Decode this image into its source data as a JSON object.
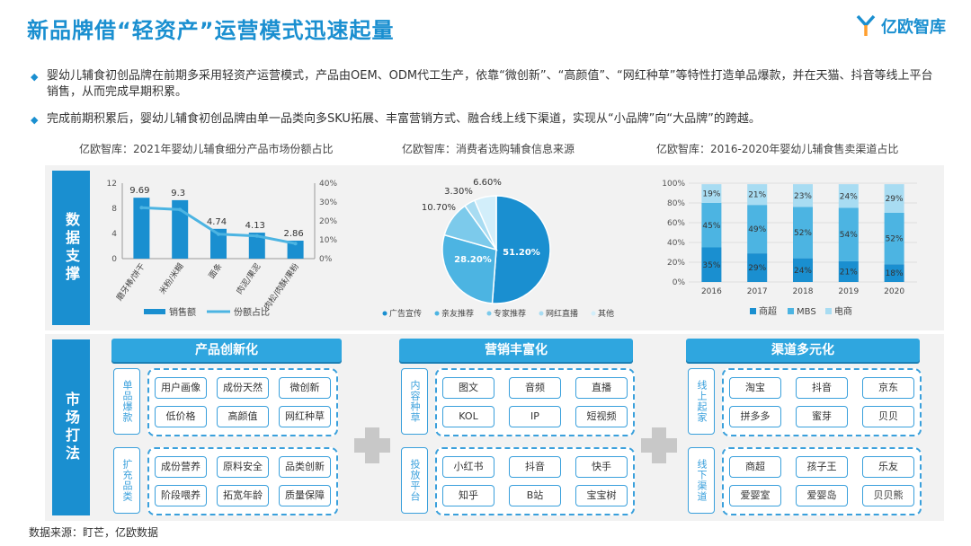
{
  "header": {
    "title": "新品牌借“轻资产”运营模式迅速起量",
    "logo_text": "亿欧智库"
  },
  "bullets": [
    "婴幼儿辅食初创品牌在前期多采用轻资产运营模式，产品由OEM、ODM代工生产，依靠“微创新”、“高颜值”、“网红种草”等特性打造单品爆款，并在天猫、抖音等线上平台销售，从而完成早期积累。",
    "完成前期积累后，婴幼儿辅食初创品牌由单一品类向多SKU拓展、丰富营销方式、融合线上线下渠道，实现从“小品牌”向“大品牌”的跨越。"
  ],
  "chart_titles": [
    "亿欧智库：2021年婴幼儿辅食细分产品市场份额占比",
    "亿欧智库：消费者选购辅食信息来源",
    "亿欧智库：2016-2020年婴幼儿辅食售卖渠道占比"
  ],
  "side_labels": {
    "data": "数据支撑",
    "market": "市场打法"
  },
  "chart_data": [
    {
      "type": "bar",
      "categories": [
        "磨牙棒/饼干",
        "米粉/米糊",
        "面条",
        "肉泥/果泥",
        "肉松/肉酥/果粉"
      ],
      "series": [
        {
          "name": "销售额",
          "type": "bar",
          "values": [
            9.69,
            9.3,
            4.74,
            4.13,
            2.86
          ]
        },
        {
          "name": "份额占比",
          "type": "line",
          "values": [
            27,
            26,
            13,
            12,
            8
          ]
        }
      ],
      "data_labels": [
        "9.69",
        "9.3",
        "4.74",
        "4.13",
        "2.86"
      ],
      "ylim": [
        0,
        12
      ],
      "yticks": [
        "0",
        "4",
        "8",
        "12"
      ],
      "y2lim": [
        0,
        40
      ],
      "y2ticks": [
        "0%",
        "10%",
        "20%",
        "30%",
        "40%"
      ]
    },
    {
      "type": "pie",
      "labels": [
        "广告宣传",
        "亲友推荐",
        "专家推荐",
        "网红直播",
        "其他"
      ],
      "values": [
        51.2,
        28.2,
        10.7,
        3.3,
        6.6
      ],
      "value_labels": [
        "51.20%",
        "28.20%",
        "10.70%",
        "3.30%",
        "6.60%"
      ],
      "colors": [
        "#1a8fd0",
        "#4cb4e2",
        "#7ccaeb",
        "#a8dcf2",
        "#d2eefa"
      ]
    },
    {
      "type": "bar",
      "stacked": true,
      "categories": [
        "2016",
        "2017",
        "2018",
        "2019",
        "2020"
      ],
      "series": [
        {
          "name": "商超",
          "values": [
            35,
            29,
            24,
            21,
            18
          ],
          "labels": [
            "35%",
            "29%",
            "24%",
            "21%",
            "18%"
          ],
          "color": "#1a8fd0"
        },
        {
          "name": "MBS",
          "values": [
            45,
            49,
            52,
            54,
            52
          ],
          "labels": [
            "45%",
            "49%",
            "52%",
            "54%",
            "52%"
          ],
          "color": "#4cb4e2"
        },
        {
          "name": "电商",
          "values": [
            19,
            21,
            23,
            24,
            29
          ],
          "labels": [
            "19%",
            "21%",
            "23%",
            "24%",
            "29%"
          ],
          "color": "#a8dcf2"
        }
      ],
      "ylim": [
        0,
        100
      ],
      "yticks": [
        "0%",
        "20%",
        "40%",
        "60%",
        "80%",
        "100%"
      ]
    }
  ],
  "market": {
    "sections": [
      {
        "title": "产品创新化",
        "groups": [
          {
            "tab": "单品爆款",
            "items": [
              "用户画像",
              "成份天然",
              "微创新",
              "低价格",
              "高颜值",
              "网红种草"
            ]
          },
          {
            "tab": "扩充品类",
            "items": [
              "成份营养",
              "原料安全",
              "品类创新",
              "阶段喂养",
              "拓宽年龄",
              "质量保障"
            ]
          }
        ]
      },
      {
        "title": "营销丰富化",
        "groups": [
          {
            "tab": "内容种草",
            "items": [
              "图文",
              "音频",
              "直播",
              "KOL",
              "IP",
              "短视频"
            ]
          },
          {
            "tab": "投放平台",
            "items": [
              "小红书",
              "抖音",
              "快手",
              "知乎",
              "B站",
              "宝宝树"
            ]
          }
        ]
      },
      {
        "title": "渠道多元化",
        "groups": [
          {
            "tab": "线上起家",
            "items": [
              "淘宝",
              "抖音",
              "京东",
              "拼多多",
              "蜜芽",
              "贝贝"
            ]
          },
          {
            "tab": "线下渠道",
            "items": [
              "商超",
              "孩子王",
              "乐友",
              "爱婴室",
              "爱婴岛",
              "贝贝熊"
            ]
          }
        ]
      }
    ]
  },
  "source": "数据来源：盯芒，亿欧数据"
}
